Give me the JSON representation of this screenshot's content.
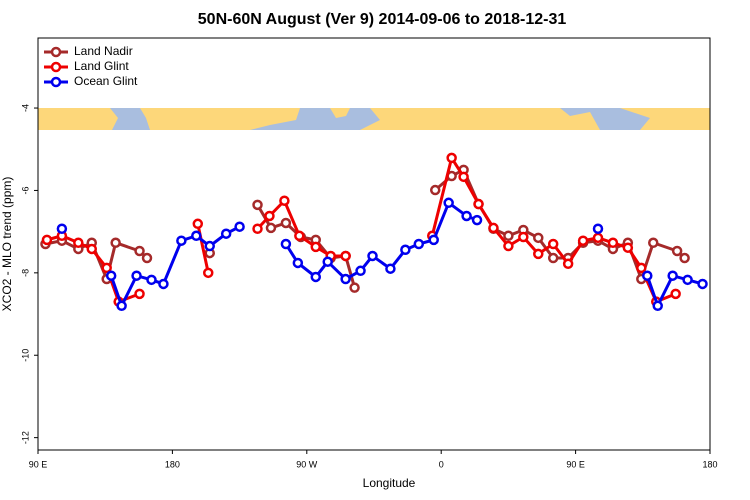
{
  "chart_data": {
    "type": "line",
    "title": "50N-60N August (Ver 9)   2014-09-06 to 2018-12-31",
    "x_label": "Longitude",
    "y_label": "XCO2 - MLO trend (ppm)",
    "xlim": [
      90,
      540
    ],
    "ylim": [
      -12.3,
      -2.3
    ],
    "xticks": [
      {
        "value": 90,
        "label": "90 E"
      },
      180,
      {
        "value": 270,
        "label": "90 W"
      },
      {
        "value": 360,
        "label": "0"
      },
      {
        "value": 450,
        "label": "90 E"
      },
      {
        "value": 540,
        "label": "180"
      }
    ],
    "yticks": [
      -4,
      -6,
      -8,
      -10,
      -12
    ],
    "legend": "upper left",
    "series": [
      {
        "name": "Land Nadir",
        "color": "#a52a2a",
        "x": [
          95,
          106,
          117,
          126,
          136,
          142,
          158,
          163,
          null,
          205,
          null,
          237,
          246,
          256,
          266,
          276,
          286,
          296,
          302,
          null,
          356,
          367,
          375,
          385,
          395,
          405,
          415,
          425,
          435,
          445,
          455,
          465,
          475,
          485,
          494,
          502,
          518,
          523
        ],
        "values": [
          -7.3,
          -7.22,
          -7.42,
          -7.27,
          -8.15,
          -7.27,
          -7.47,
          -7.64,
          null,
          -7.52,
          null,
          -6.35,
          -6.91,
          -6.79,
          -7.13,
          -7.2,
          -7.64,
          -7.59,
          -8.36,
          null,
          -5.99,
          -5.65,
          -5.5,
          -6.33,
          -6.93,
          -7.1,
          -6.96,
          -7.15,
          -7.64,
          -7.64,
          -7.27,
          -7.22,
          -7.42,
          -7.27,
          -8.15,
          -7.27,
          -7.47,
          -7.64
        ]
      },
      {
        "name": "Land Glint",
        "color": "#ee0000",
        "x": [
          96,
          106,
          117,
          126,
          136,
          144,
          158,
          null,
          197,
          204,
          null,
          237,
          245,
          255,
          265,
          276,
          286,
          296,
          null,
          354,
          367,
          375,
          385,
          395,
          405,
          415,
          425,
          435,
          445,
          455,
          465,
          475,
          485,
          494,
          504,
          517
        ],
        "values": [
          -7.2,
          -7.1,
          -7.27,
          -7.42,
          -7.88,
          -8.7,
          -8.51,
          null,
          -6.81,
          -8.0,
          null,
          -6.93,
          -6.62,
          -6.25,
          -7.1,
          -7.37,
          -7.59,
          -7.59,
          null,
          -7.1,
          -5.21,
          -5.67,
          -6.33,
          -6.91,
          -7.35,
          -7.13,
          -7.54,
          -7.3,
          -7.78,
          -7.22,
          -7.15,
          -7.27,
          -7.39,
          -7.88,
          -8.7,
          -8.51
        ]
      },
      {
        "name": "Ocean Glint",
        "color": "#0000ee",
        "x": [
          106,
          null,
          139,
          146,
          156,
          166,
          174,
          186,
          196,
          205,
          216,
          225,
          null,
          256,
          264,
          276,
          284,
          296,
          306,
          314,
          326,
          336,
          345,
          355,
          365,
          377,
          384,
          null,
          465,
          null,
          498,
          505,
          515,
          525,
          535
        ],
        "values": [
          -6.93,
          null,
          -8.07,
          -8.8,
          -8.07,
          -8.17,
          -8.27,
          -7.22,
          -7.1,
          -7.35,
          -7.05,
          -6.88,
          null,
          -7.3,
          -7.76,
          -8.1,
          -7.73,
          -8.15,
          -7.95,
          -7.59,
          -7.9,
          -7.44,
          -7.3,
          -7.2,
          -6.3,
          -6.62,
          -6.72,
          null,
          -6.93,
          null,
          -8.07,
          -8.8,
          -8.07,
          -8.17,
          -8.27
        ]
      }
    ]
  }
}
